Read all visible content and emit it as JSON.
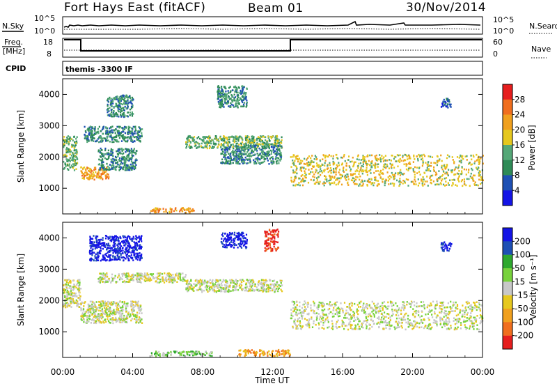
{
  "header": {
    "station": "Fort Hays East (fitACF)",
    "beam": "Beam 01",
    "date": "30/Nov/2014"
  },
  "params": {
    "nsky_label": "N.Sky",
    "nsky_ticks": [
      "10^5",
      "10^0"
    ],
    "nsearch_label": "N.Search",
    "nsearch_ticks": [
      "10^5",
      "10^0"
    ],
    "freq_label_1": "Freq.",
    "freq_label_2": "[MHz]",
    "freq_ticks": [
      "18",
      "8"
    ],
    "nave_label": "Nave",
    "nave_ticks": [
      "60",
      "0"
    ],
    "cpid_label": "CPID",
    "cpid_value": "themis -3300 IF"
  },
  "colors": {
    "power_scale": [
      "#1414e6",
      "#1e50b4",
      "#2e8b57",
      "#55a878",
      "#e6c81e",
      "#f0a01e",
      "#f06e1e",
      "#e61e1e"
    ],
    "velocity_scale": [
      "#1414e6",
      "#1e50b4",
      "#2ea82e",
      "#78d23c",
      "#c8c8c8",
      "#e6c81e",
      "#f0a01e",
      "#f06e1e",
      "#e61e1e"
    ]
  },
  "chart_data": [
    {
      "type": "heatmap",
      "name": "power",
      "x_ticks": [
        "00:00",
        "04:00",
        "08:00",
        "12:00",
        "16:00",
        "20:00",
        "00:00"
      ],
      "xlim_hours": [
        0,
        24
      ],
      "ylabel": "Slant Range [km]",
      "yticks": [
        1000,
        2000,
        3000,
        4000
      ],
      "ylim": [
        180,
        4500
      ],
      "colorbar_label": "Power [dB]",
      "colorbar_ticks": [
        "28",
        "24",
        "20",
        "16",
        "12",
        "8",
        "4"
      ],
      "regions": [
        {
          "t0": 0.0,
          "t1": 0.8,
          "r0": 1600,
          "r1": 2700,
          "level": 3
        },
        {
          "t0": 1.0,
          "t1": 2.6,
          "r0": 1300,
          "r1": 1700,
          "level": 5
        },
        {
          "t0": 1.2,
          "t1": 4.5,
          "r0": 2500,
          "r1": 3000,
          "level": 2
        },
        {
          "t0": 2.0,
          "t1": 4.2,
          "r0": 1600,
          "r1": 2300,
          "level": 2
        },
        {
          "t0": 2.5,
          "t1": 4.0,
          "r0": 3300,
          "r1": 4000,
          "level": 2
        },
        {
          "t0": 5.0,
          "t1": 7.5,
          "r0": 250,
          "r1": 400,
          "level": 5
        },
        {
          "t0": 7.0,
          "t1": 12.5,
          "r0": 2300,
          "r1": 2700,
          "level": 3
        },
        {
          "t0": 8.8,
          "t1": 10.5,
          "r0": 3600,
          "r1": 4300,
          "level": 2
        },
        {
          "t0": 9.0,
          "t1": 12.5,
          "r0": 1800,
          "r1": 2400,
          "level": 2
        },
        {
          "t0": 13.0,
          "t1": 24.0,
          "r0": 1100,
          "r1": 2100,
          "level": 4
        },
        {
          "t0": 21.6,
          "t1": 22.2,
          "r0": 3600,
          "r1": 3900,
          "level": 1
        }
      ]
    },
    {
      "type": "heatmap",
      "name": "velocity",
      "x_ticks": [
        "00:00",
        "04:00",
        "08:00",
        "12:00",
        "16:00",
        "20:00",
        "00:00"
      ],
      "xlim_hours": [
        0,
        24
      ],
      "xlabel": "Time UT",
      "ylabel": "Slant Range [km]",
      "yticks": [
        1000,
        2000,
        3000,
        4000
      ],
      "ylim": [
        180,
        4500
      ],
      "colorbar_label": "Velocity [m s⁻¹]",
      "colorbar_ticks": [
        "200",
        "100",
        "50",
        "15",
        "-15",
        "-50",
        "-100",
        "-200"
      ],
      "regions": [
        {
          "t0": 0.0,
          "t1": 1.0,
          "r0": 1800,
          "r1": 2700,
          "level": 4
        },
        {
          "t0": 1.0,
          "t1": 4.5,
          "r0": 1300,
          "r1": 2000,
          "level": 4
        },
        {
          "t0": 1.5,
          "t1": 4.5,
          "r0": 3300,
          "r1": 4100,
          "level": 0
        },
        {
          "t0": 2.0,
          "t1": 7.0,
          "r0": 2600,
          "r1": 2900,
          "level": 4
        },
        {
          "t0": 5.0,
          "t1": 8.5,
          "r0": 250,
          "r1": 400,
          "level": 3
        },
        {
          "t0": 7.0,
          "t1": 12.5,
          "r0": 2300,
          "r1": 2700,
          "level": 4
        },
        {
          "t0": 9.0,
          "t1": 10.5,
          "r0": 3700,
          "r1": 4200,
          "level": 0
        },
        {
          "t0": 10.0,
          "t1": 13.0,
          "r0": 250,
          "r1": 450,
          "level": 6
        },
        {
          "t0": 11.5,
          "t1": 12.3,
          "r0": 3600,
          "r1": 4300,
          "level": 8
        },
        {
          "t0": 13.0,
          "t1": 24.0,
          "r0": 1100,
          "r1": 2000,
          "level": 4
        },
        {
          "t0": 21.6,
          "t1": 22.2,
          "r0": 3600,
          "r1": 3900,
          "level": 0
        }
      ]
    }
  ]
}
